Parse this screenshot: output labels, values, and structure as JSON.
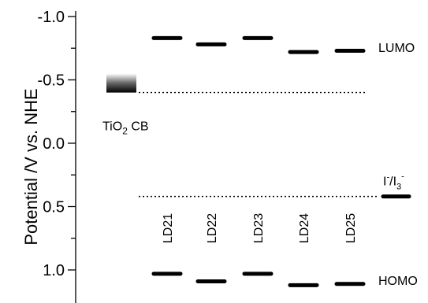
{
  "chart_data": {
    "type": "scatter",
    "title": "",
    "ylabel": "Potential  /V vs. NHE",
    "y_axis_inverted": true,
    "ylim": [
      1.15,
      -1.05
    ],
    "yticks": [
      -1.0,
      -0.5,
      0.0,
      0.5,
      1.0
    ],
    "ytick_labels": [
      "-1.0",
      "-0.5",
      "0.0",
      "0.5",
      "1.0"
    ],
    "grid": false,
    "categories": [
      "LD21",
      "LD22",
      "LD23",
      "LD24",
      "LD25"
    ],
    "series": [
      {
        "name": "LUMO",
        "values": [
          -0.83,
          -0.78,
          -0.83,
          -0.72,
          -0.73
        ]
      },
      {
        "name": "HOMO",
        "values": [
          1.03,
          1.09,
          1.03,
          1.12,
          1.11
        ]
      }
    ],
    "reference_levels": [
      {
        "label_base": "TiO",
        "label_sub": "2",
        "label_after": " CB",
        "value": -0.4,
        "band_top": -0.5
      },
      {
        "label_part1": "I",
        "label_sup1": "-",
        "label_part2": "/I",
        "label_sub2": "3",
        "label_sup2": "-",
        "value": 0.42
      }
    ],
    "series_colors": {
      "LUMO": "#000000",
      "HOMO": "#000000",
      "reference": "#000000"
    }
  }
}
